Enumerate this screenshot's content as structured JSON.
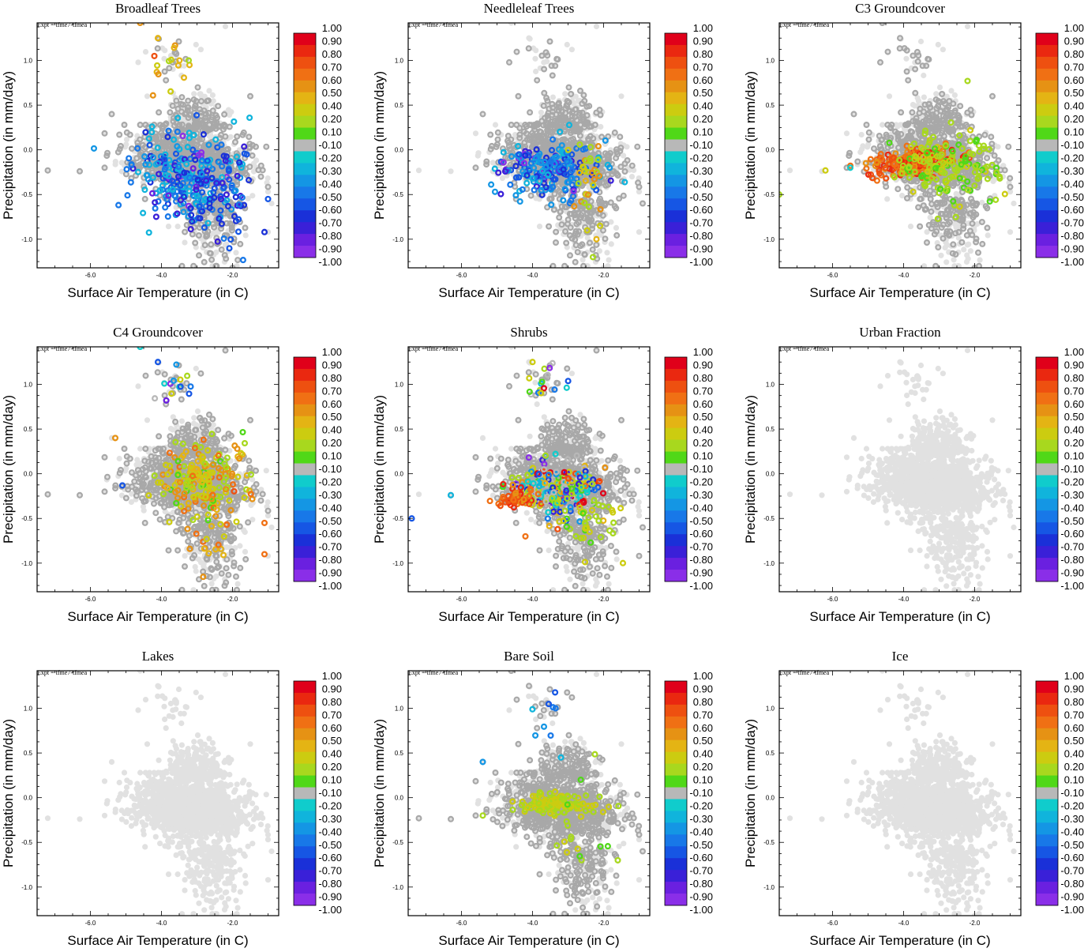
{
  "figure": {
    "expt_label": "Expt = tfme7-tfmea",
    "xlabel": "Surface Air Temperature (in C)",
    "ylabel": "Precipitation (in mm/day)",
    "xlim": [
      -7.5,
      -0.7
    ],
    "ylim": [
      -1.32,
      1.42
    ],
    "x_ticks": [
      "-6.0",
      "-4.0",
      "-2.0"
    ],
    "y_ticks": [
      "-1.0",
      "-0.5",
      "0.0",
      "0.5",
      "1.0"
    ],
    "colorbar": {
      "labels": [
        "1.00",
        "0.90",
        "0.80",
        "0.70",
        "0.60",
        "0.50",
        "0.40",
        "0.20",
        "0.10",
        "-0.10",
        "-0.20",
        "-0.30",
        "-0.40",
        "-0.50",
        "-0.60",
        "-0.70",
        "-0.80",
        "-0.90",
        "-1.00"
      ],
      "colors": [
        "#e0001a",
        "#ea2810",
        "#ee5010",
        "#f07014",
        "#e69214",
        "#e4b414",
        "#cccc10",
        "#a8d81e",
        "#50d818",
        "#b8b8b8",
        "#10cccc",
        "#10b4dc",
        "#1496e4",
        "#1878e8",
        "#1656e4",
        "#1a30d8",
        "#3a20d8",
        "#6a20e0",
        "#8a2ee8"
      ]
    }
  },
  "chart_data": [
    {
      "type": "scatter",
      "title": "Broadleaf Trees",
      "profile": "broadleaf",
      "xlabel": "Surface Air Temperature (in C)",
      "ylabel": "Precipitation (in mm/day)",
      "colorbar_range": [
        -1.0,
        1.0
      ]
    },
    {
      "type": "scatter",
      "title": "Needleleaf Trees",
      "profile": "needleleaf",
      "xlabel": "Surface Air Temperature (in C)",
      "ylabel": "Precipitation (in mm/day)",
      "colorbar_range": [
        -1.0,
        1.0
      ]
    },
    {
      "type": "scatter",
      "title": "C3 Groundcover",
      "profile": "c3",
      "xlabel": "Surface Air Temperature (in C)",
      "ylabel": "Precipitation (in mm/day)",
      "colorbar_range": [
        -1.0,
        1.0
      ]
    },
    {
      "type": "scatter",
      "title": "C4 Groundcover",
      "profile": "c4",
      "xlabel": "Surface Air Temperature (in C)",
      "ylabel": "Precipitation (in mm/day)",
      "colorbar_range": [
        -1.0,
        1.0
      ]
    },
    {
      "type": "scatter",
      "title": "Shrubs",
      "profile": "shrubs",
      "xlabel": "Surface Air Temperature (in C)",
      "ylabel": "Precipitation (in mm/day)",
      "colorbar_range": [
        -1.0,
        1.0
      ]
    },
    {
      "type": "scatter",
      "title": "Urban Fraction",
      "profile": "none",
      "xlabel": "Surface Air Temperature (in C)",
      "ylabel": "Precipitation (in mm/day)",
      "colorbar_range": [
        -1.0,
        1.0
      ]
    },
    {
      "type": "scatter",
      "title": "Lakes",
      "profile": "none",
      "xlabel": "Surface Air Temperature (in C)",
      "ylabel": "Precipitation (in mm/day)",
      "colorbar_range": [
        -1.0,
        1.0
      ]
    },
    {
      "type": "scatter",
      "title": "Bare Soil",
      "profile": "baresoil",
      "xlabel": "Surface Air Temperature (in C)",
      "ylabel": "Precipitation (in mm/day)",
      "colorbar_range": [
        -1.0,
        1.0
      ]
    },
    {
      "type": "scatter",
      "title": "Ice",
      "profile": "none",
      "xlabel": "Surface Air Temperature (in C)",
      "ylabel": "Precipitation (in mm/day)",
      "colorbar_range": [
        -1.0,
        1.0
      ]
    }
  ]
}
